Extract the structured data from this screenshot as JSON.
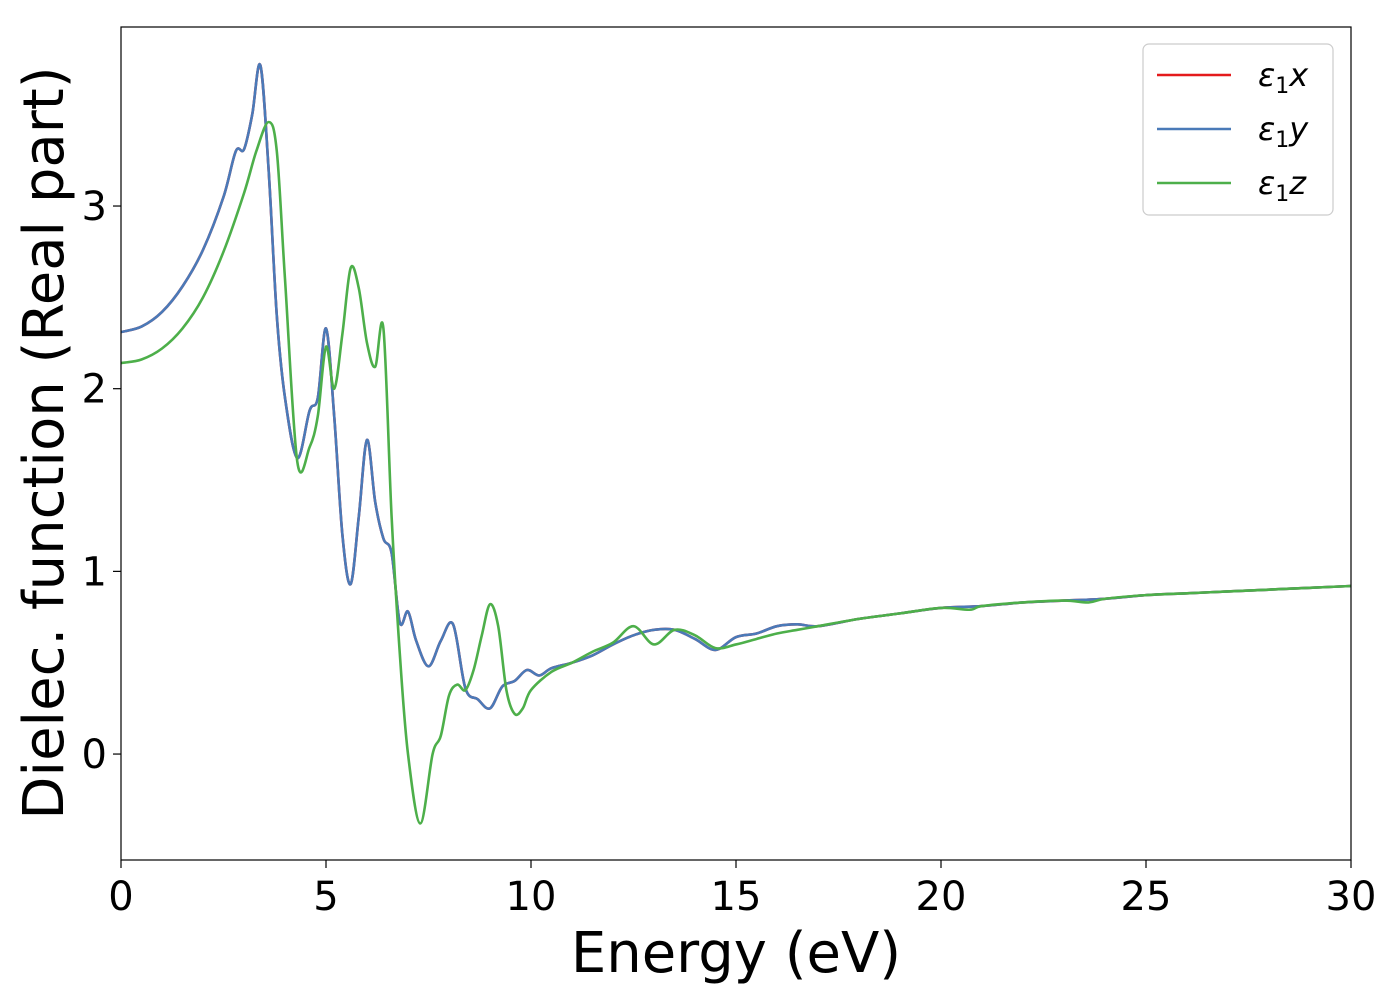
{
  "chart_data": {
    "type": "line",
    "title": "",
    "xlabel": "Energy (eV)",
    "ylabel": "Dielec. function (Real part)",
    "xlim": [
      0,
      30
    ],
    "ylim": [
      -0.58,
      3.98
    ],
    "xticks": [
      "0",
      "5",
      "10",
      "15",
      "20",
      "25",
      "30"
    ],
    "yticks": [
      "0",
      "1",
      "2",
      "3"
    ],
    "grid": false,
    "legend_position": "top-right",
    "series": [
      {
        "name": "ε1x",
        "symbol": "ε",
        "sub": "1",
        "axis": "x",
        "color": "#e41a1c",
        "x": [
          0,
          0.5,
          1,
          1.5,
          2,
          2.5,
          2.8,
          3.0,
          3.2,
          3.4,
          3.6,
          3.8,
          4.0,
          4.3,
          4.6,
          4.8,
          5.0,
          5.2,
          5.4,
          5.6,
          5.8,
          6.0,
          6.2,
          6.4,
          6.6,
          6.8,
          7.0,
          7.2,
          7.5,
          7.8,
          8.1,
          8.4,
          8.7,
          9.0,
          9.3,
          9.6,
          9.9,
          10.2,
          10.5,
          11.0,
          11.5,
          12.0,
          12.5,
          13.0,
          13.5,
          14.0,
          14.5,
          15.0,
          15.5,
          16.0,
          16.5,
          17.0,
          18.0,
          19.0,
          20.0,
          21.0,
          22.0,
          23.0,
          24.0,
          25.0,
          26.0,
          27.0,
          28.0,
          29.0,
          30.0
        ],
        "y": [
          2.31,
          2.34,
          2.42,
          2.56,
          2.76,
          3.05,
          3.3,
          3.31,
          3.5,
          3.77,
          3.2,
          2.4,
          1.95,
          1.62,
          1.88,
          1.95,
          2.33,
          1.85,
          1.2,
          0.93,
          1.3,
          1.72,
          1.38,
          1.18,
          1.1,
          0.72,
          0.78,
          0.62,
          0.48,
          0.62,
          0.71,
          0.36,
          0.3,
          0.25,
          0.37,
          0.4,
          0.46,
          0.43,
          0.47,
          0.5,
          0.54,
          0.6,
          0.65,
          0.68,
          0.68,
          0.63,
          0.57,
          0.64,
          0.66,
          0.7,
          0.71,
          0.7,
          0.74,
          0.77,
          0.8,
          0.81,
          0.83,
          0.84,
          0.85,
          0.87,
          0.88,
          0.89,
          0.9,
          0.91,
          0.92
        ]
      },
      {
        "name": "ε1y",
        "symbol": "ε",
        "sub": "1",
        "axis": "y",
        "color": "#4a7ab8",
        "x": [
          0,
          0.5,
          1,
          1.5,
          2,
          2.5,
          2.8,
          3.0,
          3.2,
          3.4,
          3.6,
          3.8,
          4.0,
          4.3,
          4.6,
          4.8,
          5.0,
          5.2,
          5.4,
          5.6,
          5.8,
          6.0,
          6.2,
          6.4,
          6.6,
          6.8,
          7.0,
          7.2,
          7.5,
          7.8,
          8.1,
          8.4,
          8.7,
          9.0,
          9.3,
          9.6,
          9.9,
          10.2,
          10.5,
          11.0,
          11.5,
          12.0,
          12.5,
          13.0,
          13.5,
          14.0,
          14.5,
          15.0,
          15.5,
          16.0,
          16.5,
          17.0,
          18.0,
          19.0,
          20.0,
          21.0,
          22.0,
          23.0,
          24.0,
          25.0,
          26.0,
          27.0,
          28.0,
          29.0,
          30.0
        ],
        "y": [
          2.31,
          2.34,
          2.42,
          2.56,
          2.76,
          3.05,
          3.3,
          3.31,
          3.5,
          3.77,
          3.2,
          2.4,
          1.95,
          1.62,
          1.88,
          1.95,
          2.33,
          1.85,
          1.2,
          0.93,
          1.3,
          1.72,
          1.38,
          1.18,
          1.1,
          0.72,
          0.78,
          0.62,
          0.48,
          0.62,
          0.71,
          0.36,
          0.3,
          0.25,
          0.37,
          0.4,
          0.46,
          0.43,
          0.47,
          0.5,
          0.54,
          0.6,
          0.65,
          0.68,
          0.68,
          0.63,
          0.57,
          0.64,
          0.66,
          0.7,
          0.71,
          0.7,
          0.74,
          0.77,
          0.8,
          0.81,
          0.83,
          0.84,
          0.85,
          0.87,
          0.88,
          0.89,
          0.9,
          0.91,
          0.92
        ]
      },
      {
        "name": "ε1z",
        "symbol": "ε",
        "sub": "1",
        "axis": "z",
        "color": "#4daf4a",
        "x": [
          0,
          0.5,
          1,
          1.5,
          2,
          2.5,
          3.0,
          3.3,
          3.6,
          3.8,
          4.0,
          4.3,
          4.6,
          4.8,
          5.0,
          5.2,
          5.4,
          5.6,
          5.8,
          6.0,
          6.2,
          6.4,
          6.6,
          6.8,
          7.0,
          7.3,
          7.6,
          7.8,
          8.0,
          8.2,
          8.4,
          8.6,
          8.8,
          9.0,
          9.2,
          9.4,
          9.6,
          9.8,
          10.0,
          10.5,
          11.0,
          11.5,
          12.0,
          12.5,
          13.0,
          13.5,
          14.0,
          14.5,
          15.0,
          15.5,
          16.0,
          16.5,
          17.0,
          18.0,
          19.0,
          20.0,
          20.7,
          21.0,
          22.0,
          23.0,
          23.6,
          24.0,
          25.0,
          26.0,
          27.0,
          28.0,
          29.0,
          30.0
        ],
        "y": [
          2.14,
          2.16,
          2.22,
          2.33,
          2.5,
          2.75,
          3.07,
          3.3,
          3.46,
          3.3,
          2.6,
          1.6,
          1.68,
          1.85,
          2.23,
          2.0,
          2.3,
          2.66,
          2.55,
          2.25,
          2.12,
          2.33,
          1.3,
          0.55,
          0.0,
          -0.38,
          0.0,
          0.1,
          0.32,
          0.38,
          0.35,
          0.46,
          0.65,
          0.82,
          0.7,
          0.35,
          0.22,
          0.25,
          0.35,
          0.45,
          0.5,
          0.56,
          0.61,
          0.7,
          0.6,
          0.68,
          0.65,
          0.58,
          0.6,
          0.63,
          0.66,
          0.68,
          0.7,
          0.74,
          0.77,
          0.8,
          0.79,
          0.81,
          0.83,
          0.84,
          0.83,
          0.85,
          0.87,
          0.88,
          0.89,
          0.9,
          0.91,
          0.92
        ]
      }
    ]
  }
}
